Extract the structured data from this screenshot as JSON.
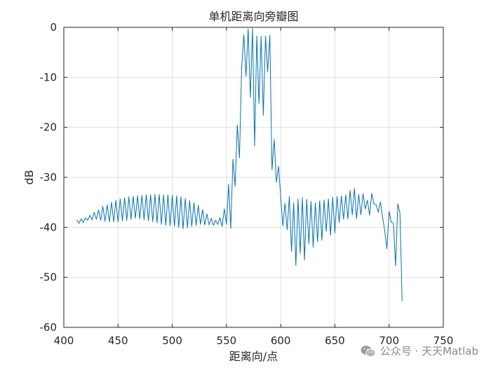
{
  "chart_data": {
    "type": "line",
    "title": "单机距离向旁瓣图",
    "xlabel": "距离向/点",
    "ylabel": "dB",
    "xlim": [
      400,
      750
    ],
    "ylim": [
      -60,
      0
    ],
    "xticks": [
      400,
      450,
      500,
      550,
      600,
      650,
      700,
      750
    ],
    "yticks": [
      0,
      -10,
      -20,
      -30,
      -40,
      -50,
      -60
    ],
    "grid": true,
    "line_color": "#0072BD",
    "series": [
      {
        "x": [
          412,
          414,
          416,
          418,
          420,
          422,
          424,
          426,
          428,
          430,
          432,
          434,
          436,
          438,
          440,
          442,
          444,
          446,
          448,
          450,
          452,
          454,
          456,
          458,
          460,
          462,
          464,
          466,
          468,
          470,
          472,
          474,
          476,
          478,
          480,
          482,
          484,
          486,
          488,
          490,
          492,
          494,
          496,
          498,
          500,
          502,
          504,
          506,
          508,
          510,
          512,
          514,
          516,
          518,
          520,
          522,
          524,
          526,
          528,
          530,
          532,
          534,
          536,
          538,
          540,
          542,
          544,
          546,
          548,
          550,
          552,
          554,
          556,
          558,
          560,
          562,
          564,
          566,
          568,
          570,
          572,
          574,
          576,
          578,
          580,
          582,
          584,
          586,
          588,
          590,
          592,
          594,
          596,
          598,
          600,
          602,
          604,
          606,
          608,
          610,
          612,
          614,
          616,
          618,
          620,
          622,
          624,
          626,
          628,
          630,
          632,
          634,
          636,
          638,
          640,
          642,
          644,
          646,
          648,
          650,
          652,
          654,
          656,
          658,
          660,
          662,
          664,
          666,
          668,
          670,
          672,
          674,
          676,
          678,
          680,
          682,
          684,
          686,
          688,
          690,
          692,
          694,
          696,
          698,
          700,
          702,
          704,
          706,
          708,
          710,
          712
        ],
        "y": [
          -38.5,
          -39.2,
          -38.3,
          -39,
          -38.1,
          -38.6,
          -37.6,
          -38.5,
          -37,
          -38.4,
          -36.5,
          -38.6,
          -35.8,
          -38.8,
          -35.5,
          -38.9,
          -35,
          -38.9,
          -34.6,
          -38.9,
          -34.3,
          -38.7,
          -34.1,
          -38.6,
          -33.9,
          -38.4,
          -33.8,
          -38.2,
          -33.7,
          -38.3,
          -33.6,
          -38.5,
          -33.5,
          -38.7,
          -33.5,
          -38.9,
          -33.4,
          -39.1,
          -33.4,
          -39.4,
          -33.5,
          -39.6,
          -33.5,
          -39.7,
          -33.6,
          -39.8,
          -33.7,
          -40,
          -33.9,
          -40.3,
          -34.2,
          -40.1,
          -34.6,
          -39.8,
          -35.1,
          -39.6,
          -35.6,
          -39.4,
          -36.4,
          -39.5,
          -37.3,
          -39.5,
          -38.2,
          -39.6,
          -38.6,
          -39.4,
          -38.1,
          -39.8,
          -36.3,
          -39.4,
          -31.4,
          -40.2,
          -26.4,
          -31.8,
          -19.5,
          -26.1,
          -8,
          -1.5,
          -9.8,
          -0.3,
          -14,
          -0.2,
          -23.7,
          -1.7,
          -15.2,
          -1.8,
          -17.6,
          -1.8,
          -8.9,
          -1.6,
          -28.5,
          -22.4,
          -31,
          -27.8,
          -33.6,
          -39.7,
          -35.2,
          -40.5,
          -33.8,
          -44.8,
          -35.1,
          -47.6,
          -34.3,
          -45.2,
          -34.1,
          -46.5,
          -34.4,
          -43.3,
          -34.8,
          -44,
          -35.1,
          -42.9,
          -34.7,
          -42.6,
          -34.5,
          -40.8,
          -34.3,
          -41.6,
          -34,
          -41.1,
          -33.8,
          -39,
          -33.7,
          -38.4,
          -33.5,
          -38.3,
          -32.6,
          -37.5,
          -32.2,
          -38.3,
          -33.4,
          -37.5,
          -33.3,
          -36.3,
          -34.6,
          -37.6,
          -33.2,
          -35.3,
          -35.5,
          -37,
          -34.9,
          -37.9,
          -40.7,
          -44.3,
          -36.8,
          -39,
          -39.2,
          -47.7,
          -35.3,
          -37.1,
          -54.8
        ]
      }
    ]
  },
  "watermark": {
    "text": "公众号 · 天天Matlab",
    "icon": "wechat-icon"
  }
}
